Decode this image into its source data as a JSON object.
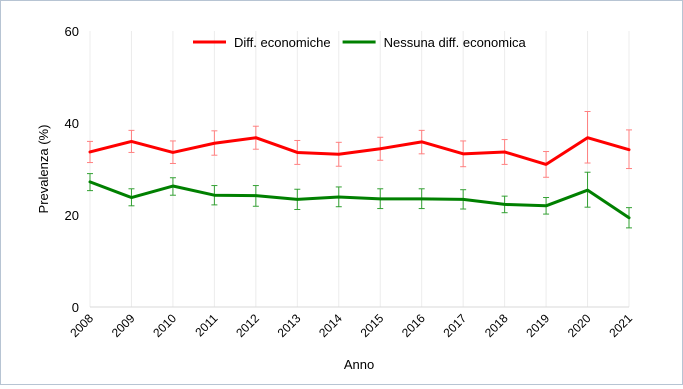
{
  "chart_data": {
    "type": "line",
    "title": "",
    "xlabel": "Anno",
    "ylabel": "Prevalenza (%)",
    "x": [
      "2008",
      "2009",
      "2010",
      "2011",
      "2012",
      "2013",
      "2014",
      "2015",
      "2016",
      "2017",
      "2018",
      "2019",
      "2020",
      "2021"
    ],
    "yticks": [
      "0",
      "20",
      "40",
      "60"
    ],
    "ylim": [
      0,
      60
    ],
    "grid": "vertical",
    "legend": "top",
    "series": [
      {
        "name": "Diff. economiche",
        "color": "#ff0000",
        "error_color": "#ff8080",
        "values": [
          33.7,
          36.0,
          33.6,
          35.6,
          36.8,
          33.6,
          33.2,
          34.4,
          35.9,
          33.3,
          33.7,
          31.0,
          36.8,
          34.2
        ],
        "lower": [
          31.4,
          33.6,
          31.2,
          33.0,
          34.3,
          31.0,
          30.6,
          31.9,
          33.3,
          30.5,
          31.0,
          28.2,
          31.3,
          30.1
        ],
        "upper": [
          36.0,
          38.4,
          36.1,
          38.3,
          39.3,
          36.2,
          35.8,
          36.9,
          38.4,
          36.1,
          36.4,
          33.8,
          42.5,
          38.5
        ]
      },
      {
        "name": "Nessuna diff. economica",
        "color": "#008000",
        "error_color": "#33a033",
        "values": [
          27.2,
          23.8,
          26.3,
          24.3,
          24.2,
          23.4,
          23.9,
          23.5,
          23.5,
          23.4,
          22.3,
          22.0,
          25.4,
          19.4
        ],
        "lower": [
          25.3,
          22.0,
          24.3,
          22.2,
          21.9,
          21.2,
          21.8,
          21.4,
          21.4,
          21.3,
          20.5,
          20.2,
          21.7,
          17.2
        ],
        "upper": [
          29.0,
          25.7,
          28.1,
          26.4,
          26.4,
          25.6,
          26.1,
          25.7,
          25.7,
          25.5,
          24.1,
          23.8,
          29.3,
          21.6
        ]
      }
    ]
  }
}
